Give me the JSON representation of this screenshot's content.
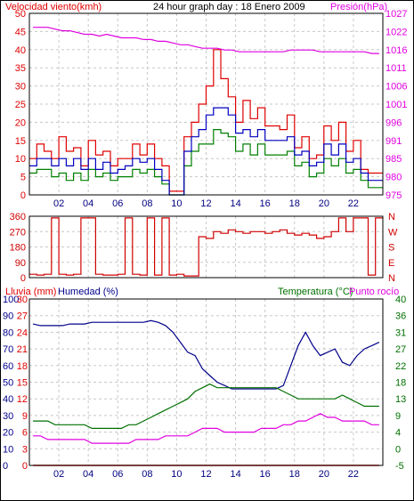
{
  "header": {
    "wind_label": "Velocidad viento(kmh)",
    "title": "24 hour graph day : 18 Enero 2009",
    "pressure_label": "Presión(hPa)"
  },
  "bottom_header": {
    "rain_label": "Lluvia (mm)",
    "humidity_label": "Humedad (%)",
    "temp_label": "Temperatura (°C)",
    "dew_label": "Punto rocío"
  },
  "colors": {
    "wind": "#e00000",
    "gust": "#0000c0",
    "wind_avg": "#008000",
    "pressure": "#e000e0",
    "direction": "#d00000",
    "humidity": "#00008b",
    "temperature": "#007000",
    "dew": "#e000e0",
    "rain": "#e00000",
    "grid": "#c8c8c8"
  },
  "x_ticks": [
    "02",
    "04",
    "06",
    "08",
    "10",
    "12",
    "14",
    "16",
    "18",
    "20",
    "22"
  ],
  "chart_data": [
    {
      "type": "line",
      "title": "24 hour graph day : 18 Enero 2009",
      "x": [
        0,
        0.5,
        1,
        1.5,
        2,
        2.5,
        3,
        3.5,
        4,
        4.5,
        5,
        5.5,
        6,
        6.5,
        7,
        7.5,
        8,
        8.5,
        9,
        9.5,
        10,
        10.5,
        11,
        11.5,
        12,
        12.5,
        13,
        13.5,
        14,
        14.5,
        15,
        15.5,
        16,
        16.5,
        17,
        17.5,
        18,
        18.5,
        19,
        19.5,
        20,
        20.5,
        21,
        21.5,
        22,
        22.5,
        23,
        23.5
      ],
      "left_axis": {
        "label": "Velocidad viento(kmh)",
        "ticks": [
          0,
          5,
          10,
          15,
          20,
          25,
          30,
          35,
          40,
          45,
          50
        ],
        "ylim": [
          0,
          50
        ]
      },
      "right_axis": {
        "label": "Presión(hPa)",
        "ticks": [
          975,
          980,
          985,
          991,
          996,
          1001,
          1006,
          1011,
          1016,
          1022,
          1027
        ],
        "ylim": [
          975,
          1027
        ]
      },
      "series": [
        {
          "values": [
            10,
            14,
            12,
            10,
            16,
            12,
            13,
            8,
            15,
            11,
            12,
            8,
            10,
            10,
            14,
            11,
            14,
            10,
            8,
            1,
            1,
            16,
            20,
            25,
            30,
            40,
            32,
            27,
            20,
            26,
            21,
            24,
            19,
            19,
            18,
            22,
            13,
            16,
            10,
            11,
            19,
            15,
            20,
            12,
            15,
            7,
            6,
            6
          ]
        },
        {
          "values": [
            8,
            10,
            10,
            8,
            10,
            8,
            10,
            7,
            10,
            7,
            9,
            6,
            7,
            8,
            10,
            9,
            10,
            7,
            4,
            0,
            0,
            12,
            16,
            18,
            22,
            24,
            24,
            22,
            17,
            18,
            16,
            18,
            15,
            15,
            15,
            16,
            11,
            12,
            8,
            9,
            14,
            11,
            14,
            9,
            10,
            6,
            4,
            4
          ]
        },
        {
          "values": [
            6,
            7,
            7,
            5,
            6,
            4,
            6,
            4,
            7,
            5,
            6,
            4,
            5,
            5,
            7,
            6,
            7,
            5,
            3,
            0,
            0,
            8,
            12,
            14,
            14,
            18,
            17,
            16,
            12,
            14,
            11,
            14,
            11,
            11,
            11,
            12,
            8,
            9,
            5,
            6,
            10,
            8,
            10,
            6,
            7,
            4,
            2,
            2
          ]
        },
        {
          "values": [
            1023,
            1023,
            1023,
            1022.5,
            1022,
            1022,
            1021.5,
            1021,
            1021,
            1020.5,
            1021,
            1020.5,
            1020,
            1020,
            1020,
            1019.5,
            1019.5,
            1019,
            1019,
            1018.5,
            1018,
            1018,
            1017.5,
            1017,
            1017,
            1017,
            1016.5,
            1016.5,
            1016,
            1016,
            1016,
            1016,
            1016,
            1016,
            1016,
            1016.5,
            1016.5,
            1016.5,
            1016.5,
            1016,
            1016,
            1016,
            1016,
            1016,
            1016,
            1016,
            1015.5,
            1015.5
          ]
        }
      ]
    },
    {
      "type": "line",
      "left_axis": {
        "ticks": [
          0,
          90,
          180,
          270,
          360
        ],
        "ylim": [
          0,
          360
        ]
      },
      "right_axis": {
        "ticks": [
          "N",
          "E",
          "S",
          "W",
          "N"
        ]
      },
      "x": [
        0,
        0.5,
        1,
        1.5,
        2,
        2.5,
        3,
        3.5,
        4,
        4.5,
        5,
        5.5,
        6,
        6.5,
        7,
        7.5,
        8,
        8.5,
        9,
        9.5,
        10,
        10.5,
        11,
        11.5,
        12,
        12.5,
        13,
        13.5,
        14,
        14.5,
        15,
        15.5,
        16,
        16.5,
        17,
        17.5,
        18,
        18.5,
        19,
        19.5,
        20,
        20.5,
        21,
        21.5,
        22,
        22.5,
        23,
        23.5
      ],
      "series": [
        {
          "values": [
            20,
            15,
            20,
            350,
            20,
            15,
            20,
            350,
            350,
            20,
            15,
            15,
            20,
            350,
            20,
            15,
            350,
            15,
            350,
            15,
            20,
            10,
            10,
            240,
            230,
            270,
            260,
            280,
            270,
            260,
            270,
            270,
            260,
            270,
            280,
            260,
            250,
            260,
            250,
            230,
            240,
            270,
            350,
            270,
            350,
            350,
            15,
            350
          ]
        }
      ]
    },
    {
      "type": "line",
      "x": [
        0,
        0.5,
        1,
        1.5,
        2,
        2.5,
        3,
        3.5,
        4,
        4.5,
        5,
        5.5,
        6,
        6.5,
        7,
        7.5,
        8,
        8.5,
        9,
        9.5,
        10,
        10.5,
        11,
        11.5,
        12,
        12.5,
        13,
        13.5,
        14,
        14.5,
        15,
        15.5,
        16,
        16.5,
        17,
        17.5,
        18,
        18.5,
        19,
        19.5,
        20,
        20.5,
        21,
        21.5,
        22,
        22.5,
        23,
        23.5
      ],
      "axes": {
        "humidity": {
          "label": "Humedad (%)",
          "ticks": [
            0,
            10,
            20,
            30,
            40,
            50,
            60,
            70,
            80,
            90,
            100
          ],
          "ylim": [
            0,
            100
          ]
        },
        "rain": {
          "label": "Lluvia (mm)",
          "ticks": [
            0,
            3,
            6,
            9,
            12,
            15,
            18,
            21,
            24,
            27,
            30
          ],
          "ylim": [
            0,
            30
          ]
        },
        "temperature": {
          "label": "Temperatura (°C)",
          "ticks": [
            -5,
            0,
            4,
            9,
            13,
            18,
            22,
            27,
            31,
            36,
            40
          ],
          "ylim": [
            -5,
            40
          ]
        }
      },
      "series": [
        {
          "values": [
            85,
            84,
            84,
            84,
            84,
            85,
            85,
            85,
            86,
            86,
            86,
            86,
            86,
            86,
            86,
            86,
            87,
            86,
            84,
            80,
            74,
            68,
            66,
            58,
            54,
            50,
            48,
            46,
            46,
            46,
            46,
            46,
            46,
            46,
            48,
            60,
            72,
            80,
            72,
            66,
            68,
            70,
            62,
            60,
            66,
            70,
            72,
            74
          ]
        },
        {
          "values": [
            7,
            7,
            7,
            6,
            6,
            6,
            6,
            6,
            5,
            5,
            5,
            5,
            5,
            6,
            6,
            7,
            8,
            9,
            10,
            11,
            12,
            13,
            15,
            16,
            17,
            16,
            16,
            16,
            16,
            16,
            16,
            16,
            16,
            16,
            15,
            14,
            13,
            13,
            13,
            13,
            13,
            13,
            14,
            13,
            12,
            11,
            11,
            11
          ]
        },
        {
          "values": [
            3,
            3,
            2,
            2,
            2,
            2,
            2,
            2,
            1,
            1,
            1,
            1,
            1,
            1,
            2,
            2,
            2,
            2,
            3,
            3,
            3,
            3,
            4,
            5,
            5,
            5,
            4,
            4,
            4,
            4,
            4,
            5,
            5,
            5,
            6,
            6,
            7,
            7,
            8,
            9,
            8,
            8,
            7,
            7,
            7,
            7,
            6,
            6
          ]
        },
        {
          "values": [
            0,
            0,
            0,
            0,
            0,
            0,
            0,
            0,
            0,
            0,
            0,
            0,
            0,
            0,
            0,
            0,
            0,
            0,
            0,
            0,
            0,
            0,
            0,
            0,
            0,
            0,
            0,
            0,
            0,
            0,
            0,
            0,
            0,
            0,
            0,
            0,
            0,
            0,
            0,
            0,
            0,
            0,
            0,
            0,
            0,
            0,
            0,
            0
          ]
        }
      ]
    }
  ]
}
